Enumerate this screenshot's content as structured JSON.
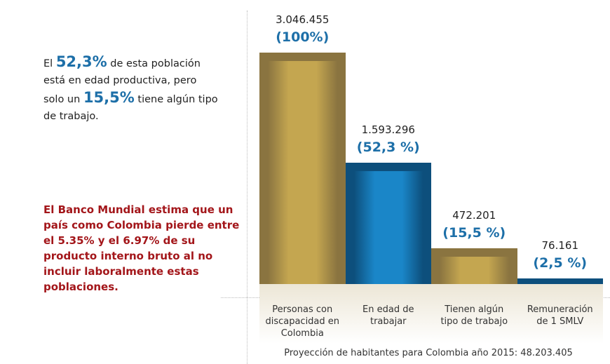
{
  "intro": {
    "parts": [
      "El ",
      "52,3%",
      " de esta población está en edad productiva, pero solo un ",
      "15,5%",
      " tiene algún tipo de trabajo."
    ]
  },
  "note": "El Banco Mundial estima que un país como Colombia pierde entre el 5.35% y el 6.97% de su producto interno bruto al no incluir laboralmente estas poblaciones.",
  "chart_data": {
    "type": "bar",
    "categories": [
      "Personas con discapacidad en Colombia",
      "En edad de trabajar",
      "Tienen algún tipo de trabajo",
      "Remuneración de 1 SMLV"
    ],
    "values": [
      3046455,
      1593296,
      472201,
      76161
    ],
    "value_labels": [
      "3.046.455",
      "1.593.296",
      "472.201",
      "76.161"
    ],
    "percent_labels": [
      "(100%)",
      "(52,3 %)",
      "(15,5 %)",
      "(2,5 %)"
    ],
    "colors": [
      "#8a7440",
      "#0d4f7c",
      "#8a7440",
      "#0d4f7c"
    ],
    "inner_colors": [
      "#c4a650",
      "#1a86c8",
      "#c4a650",
      "#1a86c8"
    ],
    "ylim": [
      0,
      3046455
    ],
    "footnote": "Proyección de habitantes para Colombia año 2015: 48.203.405"
  }
}
